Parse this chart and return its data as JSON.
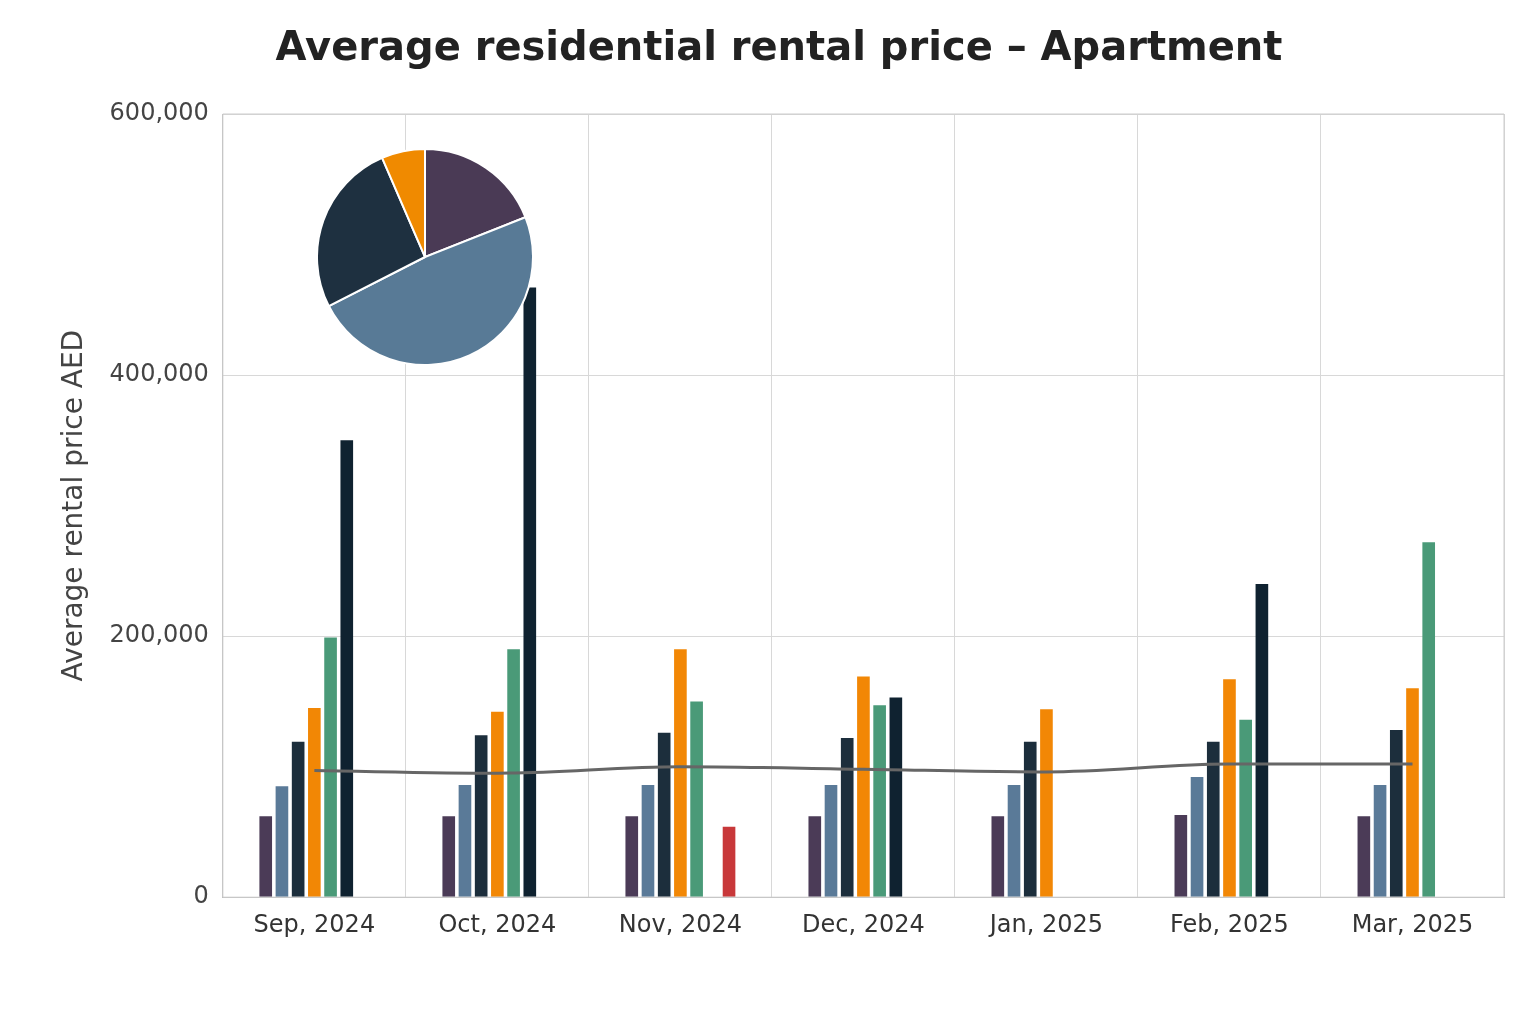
{
  "chart_data": [
    {
      "type": "bar",
      "title": "Average residential rental price – Apartment",
      "ylabel": "Average rental price AED",
      "categories": [
        "Sep, 2024",
        "Oct, 2024",
        "Nov, 2024",
        "Dec, 2024",
        "Jan, 2025",
        "Feb, 2025",
        "Mar, 2025"
      ],
      "ylim": [
        0,
        600000
      ],
      "yticks": [
        {
          "value": 0,
          "label": "0"
        },
        {
          "value": 200000,
          "label": "200,000"
        },
        {
          "value": 400000,
          "label": "400,000"
        },
        {
          "value": 600000,
          "label": "600,000"
        }
      ],
      "grid": true,
      "legend": false,
      "series": [
        {
          "color": "#4b3b57",
          "values": [
            62000,
            62000,
            62000,
            62000,
            62000,
            63000,
            62000
          ]
        },
        {
          "color": "#5a7a98",
          "values": [
            85000,
            86000,
            86000,
            86000,
            86000,
            92000,
            86000
          ]
        },
        {
          "color": "#1c2e3c",
          "values": [
            119000,
            124000,
            126000,
            122000,
            119000,
            119000,
            128000
          ]
        },
        {
          "color": "#f28705",
          "values": [
            145000,
            142000,
            190000,
            169000,
            144000,
            167000,
            160000
          ]
        },
        {
          "color": "#4a9a78",
          "values": [
            199000,
            190000,
            150000,
            147000,
            null,
            136000,
            272000
          ]
        },
        {
          "color": "#0f2230",
          "values": [
            350000,
            467000,
            null,
            153000,
            null,
            240000,
            null
          ]
        },
        {
          "color": "#c8383a",
          "values": [
            null,
            null,
            54000,
            null,
            null,
            null,
            null
          ]
        },
        {
          "type": "line",
          "color": "#666666",
          "marker": "none",
          "values": [
            97000,
            95000,
            100000,
            98000,
            96000,
            102000,
            102000
          ]
        }
      ]
    },
    {
      "type": "pie",
      "categories": [
        null,
        null,
        null,
        null
      ],
      "values": [
        19,
        48.5,
        26,
        6.5
      ],
      "colors": [
        "#4a3a55",
        "#587a96",
        "#1e3040",
        "#f08a00"
      ]
    }
  ]
}
